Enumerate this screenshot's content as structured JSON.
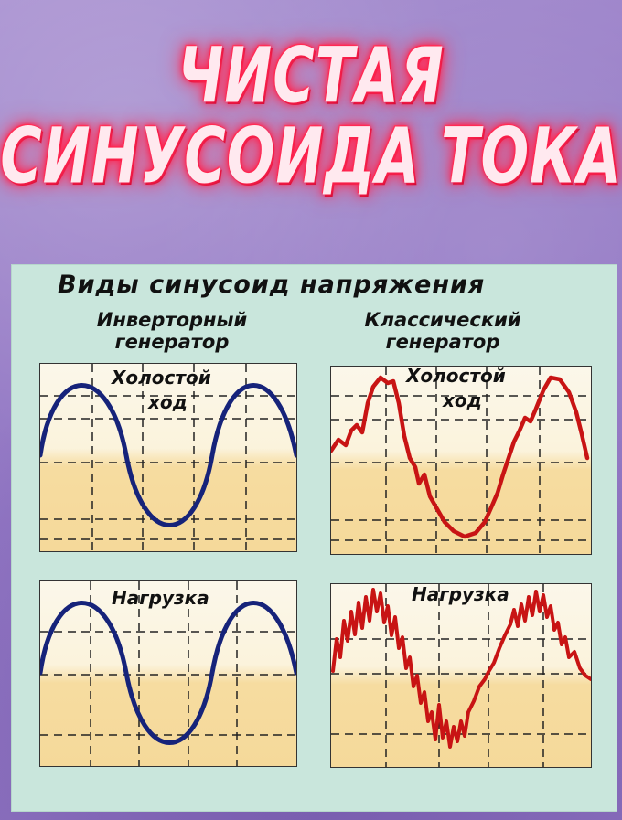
{
  "headline": {
    "line1": "ЧИСТАЯ",
    "line2": "СИНУСОИДА ТОКА"
  },
  "panel": {
    "title": "Виды синусоид напряжения",
    "inverter": {
      "label_line1": "Инверторный",
      "label_line2": "генератор"
    },
    "classic": {
      "label_line1": "Классический",
      "label_line2": "генератор"
    }
  },
  "cases": {
    "idle_line1": "Холостой",
    "idle_line2": "ход",
    "load": "Нагрузка"
  },
  "colors": {
    "inverter_wave": "#16237a",
    "classic_wave": "#c81414",
    "neon_red": "#ff2a55"
  }
}
